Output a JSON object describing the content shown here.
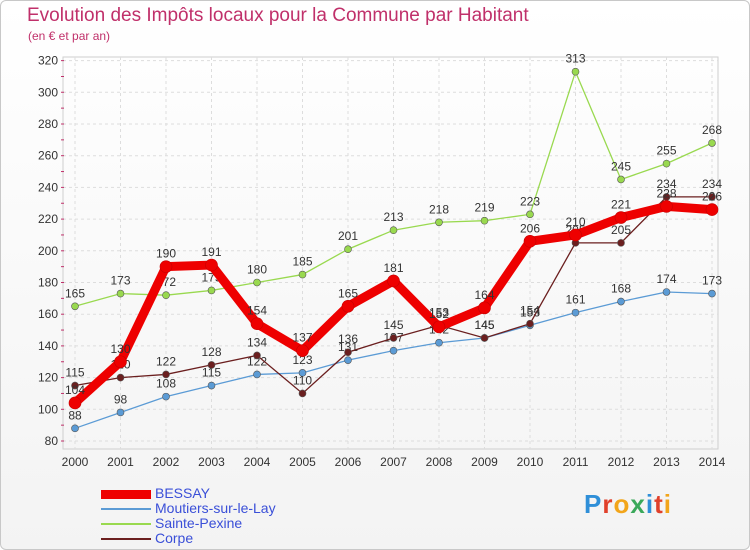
{
  "title": "Evolution des Impôts locaux pour la Commune par Habitant",
  "subtitle": "(en € et par an)",
  "logo": "Proxiti",
  "chart_data": {
    "type": "line",
    "title": "Evolution des Impôts locaux pour la Commune par Habitant",
    "ylabel": "(en € et par an)",
    "xlabel": "",
    "ylim": [
      80,
      320
    ],
    "yticks": [
      80,
      100,
      120,
      140,
      160,
      180,
      200,
      220,
      240,
      260,
      280,
      300,
      320
    ],
    "grid": true,
    "categories": [
      "2000",
      "2001",
      "2002",
      "2003",
      "2004",
      "2005",
      "2006",
      "2007",
      "2008",
      "2009",
      "2010",
      "2011",
      "2012",
      "2013",
      "2014"
    ],
    "series": [
      {
        "name": "Moutiers-sur-le-Lay",
        "color": "#5b9bd5",
        "values": [
          88,
          98,
          108,
          115,
          122,
          123,
          131,
          137,
          142,
          145,
          153,
          161,
          168,
          174,
          173
        ]
      },
      {
        "name": "Sainte-Pexine",
        "color": "#99d94f",
        "values": [
          165,
          173,
          172,
          175,
          180,
          185,
          201,
          213,
          218,
          219,
          223,
          313,
          245,
          255,
          268
        ]
      },
      {
        "name": "Corpe",
        "color": "#6b1f1f",
        "values": [
          115,
          120,
          122,
          128,
          134,
          110,
          136,
          145,
          153,
          145,
          154,
          205,
          205,
          234,
          234
        ]
      },
      {
        "name": "BESSAY",
        "color": "#ee0000",
        "values": [
          104,
          130,
          190,
          191,
          154,
          137,
          165,
          181,
          152,
          164,
          206,
          210,
          221,
          228,
          226
        ]
      }
    ],
    "legend": [
      "BESSAY",
      "Moutiers-sur-le-Lay",
      "Sainte-Pexine",
      "Corpe"
    ],
    "legend_position": "bottom-left"
  }
}
